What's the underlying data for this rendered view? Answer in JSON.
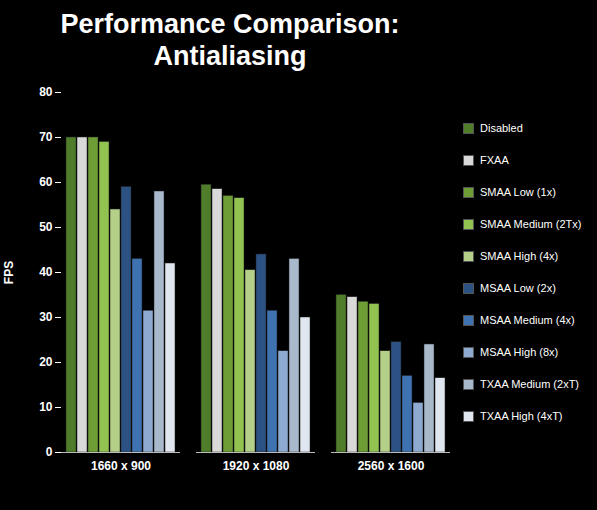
{
  "chart_data": {
    "type": "bar",
    "title": "Performance Comparison: Antialiasing",
    "y_label": "FPS",
    "categories": [
      "1660 x 900",
      "1920 x 1080",
      "2560 x 1600"
    ],
    "series": [
      {
        "name": "Disabled",
        "color": "#4f7d2a",
        "values": [
          70,
          59.5,
          35
        ]
      },
      {
        "name": "FXAA",
        "color": "#d9d9d9",
        "values": [
          70,
          58.5,
          34.5
        ]
      },
      {
        "name": "SMAA Low (1x)",
        "color": "#6f9d35",
        "values": [
          70,
          57,
          33.5
        ]
      },
      {
        "name": "SMAA Medium (2Tx)",
        "color": "#92c24f",
        "values": [
          69,
          56.5,
          33
        ]
      },
      {
        "name": "SMAA High (4x)",
        "color": "#b3cf88",
        "values": [
          54,
          40.5,
          22.5
        ]
      },
      {
        "name": "MSAA Low (2x)",
        "color": "#2b5283",
        "values": [
          59,
          44,
          24.5
        ]
      },
      {
        "name": "MSAA Medium (4x)",
        "color": "#3f72b0",
        "values": [
          43,
          31.5,
          17
        ]
      },
      {
        "name": "MSAA High (8x)",
        "color": "#8eaad0",
        "values": [
          31.5,
          22.5,
          11
        ]
      },
      {
        "name": "TXAA Medium (2xT)",
        "color": "#a9b9cc",
        "values": [
          58,
          43,
          24
        ]
      },
      {
        "name": "TXAA High (4xT)",
        "color": "#dfe6ef",
        "values": [
          42,
          30,
          16.5
        ]
      }
    ],
    "ylim": [
      0,
      80
    ],
    "yticks": [
      0,
      10,
      20,
      30,
      40,
      50,
      60,
      70,
      80
    ],
    "grid": false,
    "legend": "right"
  }
}
